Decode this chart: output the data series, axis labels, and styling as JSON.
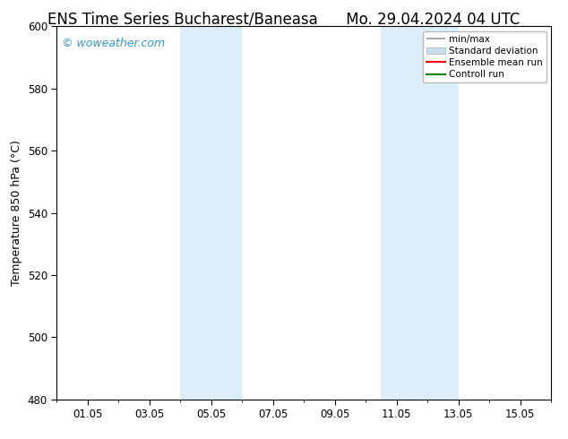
{
  "title_left": "ENS Time Series Bucharest/Baneasa",
  "title_right": "Mo. 29.04.2024 04 UTC",
  "ylabel": "Temperature 850 hPa (°C)",
  "xlim": [
    0,
    16
  ],
  "ylim": [
    480,
    600
  ],
  "yticks": [
    480,
    500,
    520,
    540,
    560,
    580,
    600
  ],
  "xtick_positions": [
    1,
    3,
    5,
    7,
    9,
    11,
    13,
    15
  ],
  "xtick_labels": [
    "01.05",
    "03.05",
    "05.05",
    "07.05",
    "09.05",
    "11.05",
    "13.05",
    "15.05"
  ],
  "shaded_bands": [
    {
      "x_start": 4.0,
      "x_end": 6.0
    },
    {
      "x_start": 10.5,
      "x_end": 13.0
    }
  ],
  "shaded_color": "#dceef9",
  "background_color": "#ffffff",
  "plot_bg_color": "#ffffff",
  "watermark_text": "© woweather.com",
  "watermark_color": "#3399cc",
  "legend_items": [
    {
      "label": "min/max",
      "color": "#aaaaaa",
      "lw": 1.5
    },
    {
      "label": "Standard deviation",
      "color": "#c8dff0",
      "lw": 6
    },
    {
      "label": "Ensemble mean run",
      "color": "#ff0000",
      "lw": 1.5
    },
    {
      "label": "Controll run",
      "color": "#008000",
      "lw": 1.5
    }
  ],
  "title_fontsize": 12,
  "ylabel_fontsize": 9,
  "tick_fontsize": 8.5,
  "legend_fontsize": 7.5,
  "watermark_fontsize": 9
}
